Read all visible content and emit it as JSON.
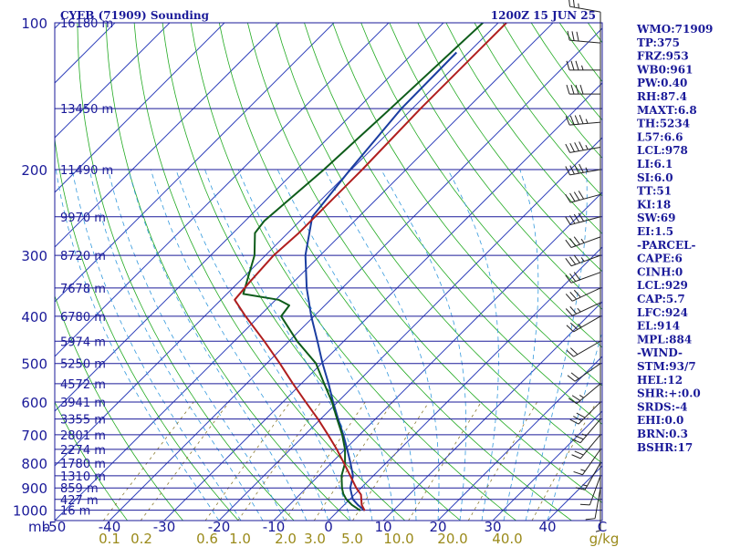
{
  "header": {
    "title": "CYEB (71909) Sounding",
    "datetime": "1200Z 15 JUN 25"
  },
  "chart_data": {
    "type": "skew-t",
    "pressure_ticks": [
      {
        "p": 100,
        "label": "100"
      },
      {
        "p": 200,
        "label": "200"
      },
      {
        "p": 300,
        "label": "300"
      },
      {
        "p": 400,
        "label": "400"
      },
      {
        "p": 500,
        "label": "500"
      },
      {
        "p": 600,
        "label": "600"
      },
      {
        "p": 700,
        "label": "700"
      },
      {
        "p": 800,
        "label": "800"
      },
      {
        "p": 900,
        "label": "900"
      },
      {
        "p": 1000,
        "label": "1000"
      }
    ],
    "height_labels": [
      {
        "p": 100,
        "label": "16180 m"
      },
      {
        "p": 150,
        "label": "13450 m"
      },
      {
        "p": 200,
        "label": "11490 m"
      },
      {
        "p": 250,
        "label": "9970 m"
      },
      {
        "p": 300,
        "label": "8720 m"
      },
      {
        "p": 350,
        "label": "7678 m"
      },
      {
        "p": 400,
        "label": "6780 m"
      },
      {
        "p": 450,
        "label": "5974 m"
      },
      {
        "p": 500,
        "label": "5250 m"
      },
      {
        "p": 550,
        "label": "4572 m"
      },
      {
        "p": 600,
        "label": "3941 m"
      },
      {
        "p": 650,
        "label": "3355 m"
      },
      {
        "p": 700,
        "label": "2801 m"
      },
      {
        "p": 750,
        "label": "2274 m"
      },
      {
        "p": 800,
        "label": "1780 m"
      },
      {
        "p": 850,
        "label": "1310 m"
      },
      {
        "p": 900,
        "label": "859 m"
      },
      {
        "p": 950,
        "label": "427 m"
      },
      {
        "p": 1000,
        "label": "16 m"
      }
    ],
    "pressure_unit": "mb",
    "temperature_ticks": [
      "-50",
      "-40",
      "-30",
      "-20",
      "-10",
      "0",
      "10",
      "20",
      "30",
      "40",
      "C"
    ],
    "mixing_ratio_ticks": [
      "0.1",
      "0.2",
      "0.6",
      "1.0",
      "2.0",
      "3.0",
      "5.0",
      "10.0",
      "20.0",
      "40.0",
      "g/kg"
    ],
    "mixing_ratio_values": [
      0.1,
      0.2,
      0.6,
      1.0,
      2.0,
      3.0,
      5.0,
      10.0,
      20.0,
      40.0
    ],
    "xlim": [
      -50,
      50
    ],
    "ylim": [
      1050,
      100
    ],
    "series": [
      {
        "role": "temperature",
        "color": "#1a3da0",
        "points": [
          {
            "p": 1002,
            "t": 4.8
          },
          {
            "p": 975,
            "t": 2.5
          },
          {
            "p": 950,
            "t": 0.6
          },
          {
            "p": 925,
            "t": -0.7
          },
          {
            "p": 900,
            "t": -2.0
          },
          {
            "p": 850,
            "t": -3.7
          },
          {
            "p": 800,
            "t": -6.5
          },
          {
            "p": 750,
            "t": -9.6
          },
          {
            "p": 700,
            "t": -13.0
          },
          {
            "p": 650,
            "t": -16.8
          },
          {
            "p": 600,
            "t": -20.8
          },
          {
            "p": 550,
            "t": -25.0
          },
          {
            "p": 500,
            "t": -29.8
          },
          {
            "p": 450,
            "t": -34.8
          },
          {
            "p": 400,
            "t": -40.5
          },
          {
            "p": 350,
            "t": -46.5
          },
          {
            "p": 300,
            "t": -52.7
          },
          {
            "p": 250,
            "t": -58.5
          },
          {
            "p": 200,
            "t": -60.2
          },
          {
            "p": 150,
            "t": -62.0
          },
          {
            "p": 115,
            "t": -62.2
          }
        ]
      },
      {
        "role": "dewpoint",
        "color": "#0e5c1a",
        "points": [
          {
            "p": 1002,
            "t": 4.0
          },
          {
            "p": 975,
            "t": 1.4
          },
          {
            "p": 950,
            "t": -0.6
          },
          {
            "p": 925,
            "t": -2.2
          },
          {
            "p": 900,
            "t": -3.5
          },
          {
            "p": 850,
            "t": -5.8
          },
          {
            "p": 800,
            "t": -7.5
          },
          {
            "p": 750,
            "t": -10.0
          },
          {
            "p": 700,
            "t": -13.2
          },
          {
            "p": 650,
            "t": -17.0
          },
          {
            "p": 600,
            "t": -21.0
          },
          {
            "p": 550,
            "t": -25.8
          },
          {
            "p": 500,
            "t": -31.0
          },
          {
            "p": 450,
            "t": -38.5
          },
          {
            "p": 400,
            "t": -46.0
          },
          {
            "p": 380,
            "t": -46.5
          },
          {
            "p": 370,
            "t": -49.5
          },
          {
            "p": 360,
            "t": -57.0
          },
          {
            "p": 300,
            "t": -62.0
          },
          {
            "p": 270,
            "t": -66.0
          },
          {
            "p": 255,
            "t": -66.5
          },
          {
            "p": 200,
            "t": -65.0
          },
          {
            "p": 150,
            "t": -64.0
          },
          {
            "p": 100,
            "t": -62.8
          }
        ]
      },
      {
        "role": "parcel",
        "color": "#b01e1e",
        "points": [
          {
            "p": 1002,
            "t": 4.8
          },
          {
            "p": 975,
            "t": 3.2
          },
          {
            "p": 929,
            "t": 1.2
          },
          {
            "p": 900,
            "t": -0.9
          },
          {
            "p": 850,
            "t": -4.2
          },
          {
            "p": 800,
            "t": -7.7
          },
          {
            "p": 750,
            "t": -11.5
          },
          {
            "p": 700,
            "t": -15.8
          },
          {
            "p": 650,
            "t": -20.5
          },
          {
            "p": 600,
            "t": -25.8
          },
          {
            "p": 550,
            "t": -31.5
          },
          {
            "p": 500,
            "t": -37.6
          },
          {
            "p": 450,
            "t": -44.5
          },
          {
            "p": 400,
            "t": -52.5
          },
          {
            "p": 370,
            "t": -57.5
          },
          {
            "p": 340,
            "t": -58.0
          },
          {
            "p": 300,
            "t": -58.5
          },
          {
            "p": 270,
            "t": -58.0
          },
          {
            "p": 250,
            "t": -58.0
          },
          {
            "p": 200,
            "t": -58.0
          },
          {
            "p": 150,
            "t": -58.5
          },
          {
            "p": 100,
            "t": -58.5
          }
        ]
      }
    ],
    "wind_barbs": [
      {
        "p": 95,
        "dir": 280,
        "spd": 25
      },
      {
        "p": 110,
        "dir": 275,
        "spd": 30
      },
      {
        "p": 125,
        "dir": 270,
        "spd": 35
      },
      {
        "p": 140,
        "dir": 270,
        "spd": 40
      },
      {
        "p": 160,
        "dir": 265,
        "spd": 45
      },
      {
        "p": 180,
        "dir": 260,
        "spd": 45
      },
      {
        "p": 200,
        "dir": 260,
        "spd": 45
      },
      {
        "p": 225,
        "dir": 255,
        "spd": 40
      },
      {
        "p": 250,
        "dir": 255,
        "spd": 40
      },
      {
        "p": 275,
        "dir": 250,
        "spd": 35
      },
      {
        "p": 300,
        "dir": 250,
        "spd": 35
      },
      {
        "p": 325,
        "dir": 250,
        "spd": 30
      },
      {
        "p": 350,
        "dir": 245,
        "spd": 30
      },
      {
        "p": 375,
        "dir": 245,
        "spd": 25
      },
      {
        "p": 400,
        "dir": 240,
        "spd": 25
      },
      {
        "p": 450,
        "dir": 240,
        "spd": 20
      },
      {
        "p": 500,
        "dir": 235,
        "spd": 20
      },
      {
        "p": 550,
        "dir": 230,
        "spd": 25
      },
      {
        "p": 600,
        "dir": 225,
        "spd": 30
      },
      {
        "p": 650,
        "dir": 220,
        "spd": 25
      },
      {
        "p": 700,
        "dir": 220,
        "spd": 20
      },
      {
        "p": 750,
        "dir": 215,
        "spd": 15
      },
      {
        "p": 800,
        "dir": 210,
        "spd": 15
      },
      {
        "p": 850,
        "dir": 200,
        "spd": 10
      },
      {
        "p": 900,
        "dir": 190,
        "spd": 10
      },
      {
        "p": 950,
        "dir": 180,
        "spd": 5
      }
    ]
  },
  "indices": [
    "WMO:71909",
    "TP:375",
    "FRZ:953",
    "WB0:961",
    "PW:0.40",
    "RH:87.4",
    "MAXT:6.8",
    "TH:5234",
    "L57:6.6",
    "LCL:978",
    "LI:6.1",
    "SI:6.0",
    "TT:51",
    "KI:18",
    "SW:69",
    "EI:1.5",
    "-PARCEL-",
    "CAPE:6",
    "CINH:0",
    "LCL:929",
    "CAP:5.7",
    "LFC:924",
    "EL:914",
    "MPL:884",
    "-WIND-",
    "STM:93/7",
    "HEL:12",
    "SHR:+:0.0",
    "SRDS:-4",
    "EHI:0.0",
    "BRN:0.3",
    "BSHR:17"
  ],
  "colors": {
    "frame": "#1a1a99",
    "isobar": "#1a1a99",
    "isotherm": "#3344bb",
    "dry_adiabat": "#22aa22",
    "moist_adiabat": "#3399dd",
    "mixing_ratio": "#8a7a30",
    "temperature": "#1a3da0",
    "dewpoint": "#0e5c1a",
    "parcel": "#b01e1e",
    "wind": "#222222"
  }
}
